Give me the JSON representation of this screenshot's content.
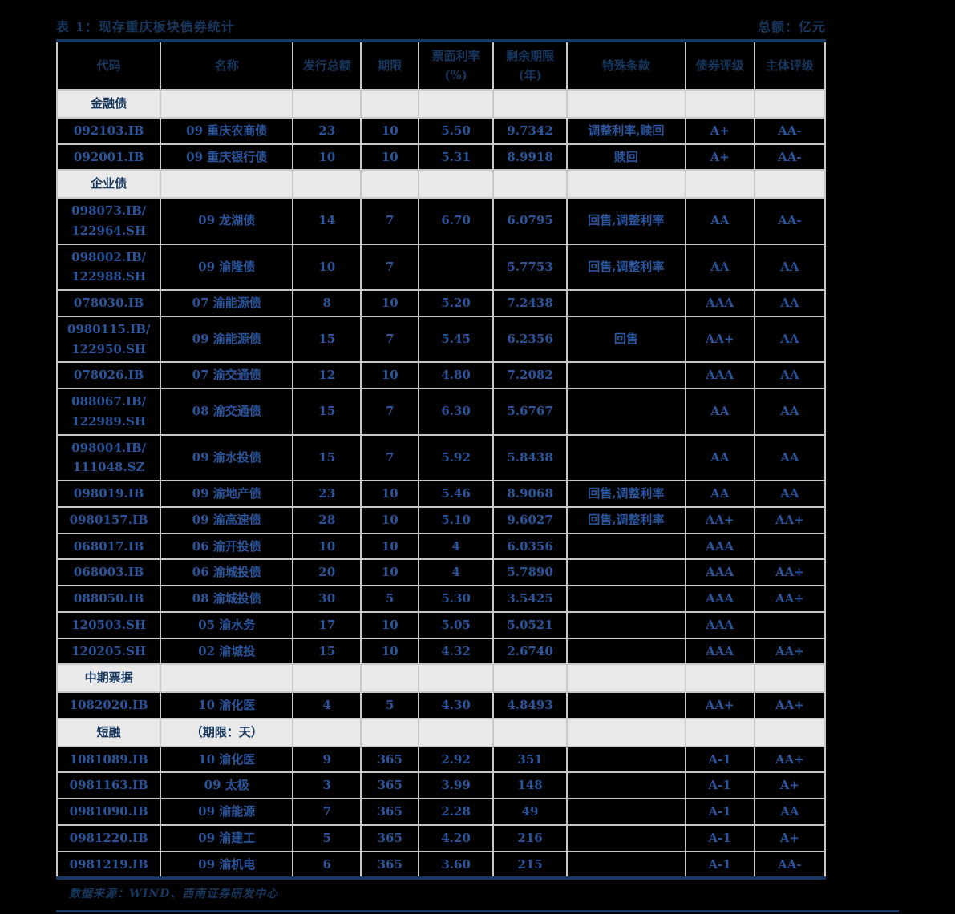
{
  "title": "表 1：现存重庆板块债券统计",
  "unit_note": "总额：亿元",
  "footer": {
    "text": "数据来源：WIND、西南证券研发中心"
  },
  "colors": {
    "navy": "#17375E",
    "cell_text": "#2a549b",
    "section_bg": "#e9e9e9",
    "grid": "#c8c8c8",
    "page_bg": "#000000"
  },
  "table": {
    "columns": [
      "代码",
      "名称",
      "发行总额",
      "期限",
      "票面利率\n(%)",
      "剩余期限\n(年)",
      "特殊条款",
      "债券评级",
      "主体评级"
    ],
    "rows": [
      {
        "type": "section",
        "cells": [
          "金融债",
          "",
          "",
          "",
          "",
          "",
          "",
          "",
          ""
        ]
      },
      {
        "type": "data",
        "cells": [
          "092103.IB",
          "09 重庆农商债",
          "23",
          "10",
          "5.50",
          "9.7342",
          "调整利率,赎回",
          "A+",
          "AA-"
        ]
      },
      {
        "type": "data",
        "cells": [
          "092001.IB",
          "09 重庆银行债",
          "10",
          "10",
          "5.31",
          "8.9918",
          "赎回",
          "A+",
          "AA-"
        ]
      },
      {
        "type": "section",
        "cells": [
          "企业债",
          "",
          "",
          "",
          "",
          "",
          "",
          "",
          ""
        ]
      },
      {
        "type": "data",
        "cells": [
          "098073.IB/\n122964.SH",
          "09 龙湖债",
          "14",
          "7",
          "6.70",
          "6.0795",
          "回售,调整利率",
          "AA",
          "AA-"
        ]
      },
      {
        "type": "data",
        "cells": [
          "098002.IB/\n122988.SH",
          "09 渝隆债",
          "10",
          "7",
          "",
          "5.7753",
          "回售,调整利率",
          "AA",
          "AA"
        ]
      },
      {
        "type": "data",
        "cells": [
          "078030.IB",
          "07 渝能源债",
          "8",
          "10",
          "5.20",
          "7.2438",
          "",
          "AAA",
          "AA"
        ]
      },
      {
        "type": "data",
        "cells": [
          "0980115.IB/\n122950.SH",
          "09 渝能源债",
          "15",
          "7",
          "5.45",
          "6.2356",
          "回售",
          "AA+",
          "AA"
        ]
      },
      {
        "type": "data",
        "cells": [
          "078026.IB",
          "07 渝交通债",
          "12",
          "10",
          "4.80",
          "7.2082",
          "",
          "AAA",
          "AA"
        ]
      },
      {
        "type": "data",
        "cells": [
          "088067.IB/\n122989.SH",
          "08 渝交通债",
          "15",
          "7",
          "6.30",
          "5.6767",
          "",
          "AA",
          "AA"
        ]
      },
      {
        "type": "data",
        "cells": [
          "098004.IB/\n111048.SZ",
          "09 渝水投债",
          "15",
          "7",
          "5.92",
          "5.8438",
          "",
          "AA",
          "AA"
        ]
      },
      {
        "type": "data",
        "cells": [
          "098019.IB",
          "09 渝地产债",
          "23",
          "10",
          "5.46",
          "8.9068",
          "回售,调整利率",
          "AA",
          "AA"
        ]
      },
      {
        "type": "data",
        "cells": [
          "0980157.IB",
          "09 渝高速债",
          "28",
          "10",
          "5.10",
          "9.6027",
          "回售,调整利率",
          "AA+",
          "AA+"
        ]
      },
      {
        "type": "data",
        "cells": [
          "068017.IB",
          "06 渝开投债",
          "10",
          "10",
          "4",
          "6.0356",
          "",
          "AAA",
          ""
        ]
      },
      {
        "type": "data",
        "cells": [
          "068003.IB",
          "06 渝城投债",
          "20",
          "10",
          "4",
          "5.7890",
          "",
          "AAA",
          "AA+"
        ]
      },
      {
        "type": "data",
        "cells": [
          "088050.IB",
          "08 渝城投债",
          "30",
          "5",
          "5.30",
          "3.5425",
          "",
          "AAA",
          "AA+"
        ]
      },
      {
        "type": "data",
        "cells": [
          "120503.SH",
          "05 渝水务",
          "17",
          "10",
          "5.05",
          "5.0521",
          "",
          "AAA",
          ""
        ]
      },
      {
        "type": "data",
        "cells": [
          "120205.SH",
          "02 渝城投",
          "15",
          "10",
          "4.32",
          "2.6740",
          "",
          "AAA",
          "AA+"
        ]
      },
      {
        "type": "section",
        "cells": [
          "中期票据",
          "",
          "",
          "",
          "",
          "",
          "",
          "",
          ""
        ]
      },
      {
        "type": "data",
        "cells": [
          "1082020.IB",
          "10 渝化医",
          "4",
          "5",
          "4.30",
          "4.8493",
          "",
          "AA+",
          "AA+"
        ]
      },
      {
        "type": "section",
        "cells": [
          "短融",
          "（期限：天）",
          "",
          "",
          "",
          "",
          "",
          "",
          ""
        ]
      },
      {
        "type": "data",
        "cells": [
          "1081089.IB",
          "10 渝化医",
          "9",
          "365",
          "2.92",
          "351",
          "",
          "A-1",
          "AA+"
        ]
      },
      {
        "type": "data",
        "cells": [
          "0981163.IB",
          "09 太极",
          "3",
          "365",
          "3.99",
          "148",
          "",
          "A-1",
          "A+"
        ]
      },
      {
        "type": "data",
        "cells": [
          "0981090.IB",
          "09 渝能源",
          "7",
          "365",
          "2.28",
          "49",
          "",
          "A-1",
          "AA"
        ]
      },
      {
        "type": "data",
        "cells": [
          "0981220.IB",
          "09 渝建工",
          "5",
          "365",
          "4.20",
          "216",
          "",
          "A-1",
          "A+"
        ]
      },
      {
        "type": "data",
        "cells": [
          "0981219.IB",
          "09 渝机电",
          "6",
          "365",
          "3.60",
          "215",
          "",
          "A-1",
          "AA-"
        ]
      }
    ]
  }
}
